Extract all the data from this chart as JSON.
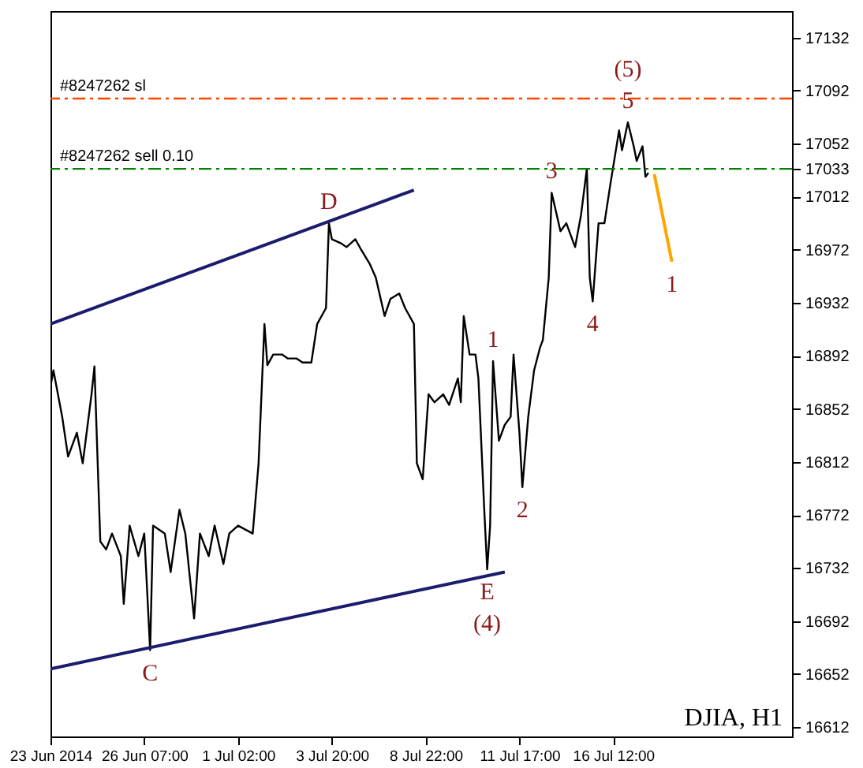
{
  "chart_data": {
    "type": "line",
    "categories": [
      "23 Jun 2014",
      null,
      null,
      null,
      null,
      null,
      null,
      null,
      null,
      null,
      null,
      null,
      null,
      null,
      null,
      null,
      null,
      null,
      null,
      null,
      null,
      null,
      null,
      null,
      null,
      null,
      null,
      null,
      null,
      null,
      null,
      null,
      "26 Jun 07:00",
      null,
      null,
      null,
      null,
      null,
      null,
      null,
      null,
      null,
      null,
      null,
      null,
      null,
      null,
      null,
      null,
      null,
      null,
      null,
      null,
      null,
      null,
      null,
      null,
      null,
      null,
      null,
      null,
      null,
      null,
      null,
      "1 Jul 02:00",
      null,
      null,
      null,
      null,
      null,
      null,
      null,
      null,
      null,
      null,
      null,
      null,
      null,
      null,
      null,
      null,
      null,
      null,
      null,
      null,
      null,
      null,
      null,
      null,
      null,
      null,
      null,
      null,
      null,
      null,
      null,
      "3 Jul 20:00",
      null,
      null,
      null,
      null,
      null,
      null,
      null,
      null,
      null,
      null,
      null,
      null,
      null,
      null,
      null,
      null,
      null,
      null,
      null,
      null,
      null,
      null,
      null,
      null,
      null,
      null,
      null,
      null,
      null,
      null,
      null,
      "8 Jul 22:00",
      null,
      null,
      null,
      null,
      null,
      null,
      null,
      null,
      null,
      null,
      null,
      null,
      null,
      null,
      null,
      null,
      null,
      null,
      null,
      null,
      null,
      null,
      null,
      null,
      null,
      null,
      null,
      null,
      null,
      null,
      null,
      "11 Jul 17:00",
      null,
      null,
      null,
      null,
      null,
      null,
      null,
      null,
      null,
      null,
      null,
      null,
      null,
      null,
      null,
      null,
      null,
      null,
      null,
      null,
      null,
      null,
      null,
      null,
      null,
      null,
      null,
      null,
      null,
      null,
      null,
      "16 Jul 12:00",
      null,
      null,
      null,
      null,
      null,
      null,
      null,
      null,
      null,
      null,
      null,
      null,
      null,
      null,
      null,
      null,
      null,
      null,
      null,
      null,
      null,
      null,
      null,
      null,
      null,
      null,
      null,
      null,
      null,
      null,
      null,
      null,
      null,
      null,
      null,
      null,
      null,
      null,
      null,
      null,
      null,
      null,
      null,
      null,
      null,
      null,
      null,
      null,
      null,
      null,
      null,
      null,
      null,
      null,
      null,
      null,
      null,
      null,
      null,
      null,
      null
    ],
    "ylim": [
      16605,
      17152
    ],
    "yticks": [
      16612,
      16652,
      16692,
      16732,
      16772,
      16812,
      16852,
      16892,
      16932,
      16972,
      17012,
      17033,
      17052,
      17092,
      17132
    ],
    "grid": false,
    "series": [
      {
        "color": "#000000",
        "values": [
          16869,
          16881,
          null,
          null,
          16846,
          null,
          16816,
          null,
          null,
          16834,
          null,
          16811,
          null,
          null,
          16863,
          16884,
          null,
          16752,
          null,
          16746,
          null,
          16758,
          null,
          null,
          16741,
          16705,
          null,
          16764,
          null,
          null,
          16741,
          null,
          16758,
          null,
          16670,
          16764,
          null,
          null,
          null,
          16758,
          null,
          16729,
          null,
          null,
          16776,
          null,
          16758,
          null,
          null,
          16694,
          null,
          16758,
          null,
          null,
          16741,
          null,
          16764,
          null,
          null,
          16735,
          null,
          16758,
          null,
          null,
          16764,
          null,
          null,
          null,
          null,
          16758,
          null,
          16811,
          null,
          16916,
          16885,
          null,
          16893,
          null,
          null,
          16893,
          null,
          16890,
          null,
          null,
          16890,
          null,
          16887,
          null,
          null,
          16887,
          null,
          16916,
          null,
          null,
          16928,
          16992,
          16980,
          null,
          null,
          16977,
          null,
          16974,
          null,
          null,
          16980,
          null,
          16972,
          null,
          null,
          16961,
          null,
          16951,
          null,
          null,
          16922,
          null,
          16935,
          null,
          null,
          16939,
          null,
          16928,
          null,
          null,
          16916,
          16811,
          null,
          16799,
          null,
          16863,
          null,
          16857,
          null,
          null,
          16863,
          null,
          16855,
          null,
          null,
          16875,
          16857,
          16922,
          null,
          16893,
          null,
          16893,
          16875,
          null,
          16776,
          16731,
          16764,
          16888,
          null,
          16828,
          null,
          16840,
          null,
          16846,
          16893,
          null,
          16834,
          16793,
          null,
          16846,
          null,
          16881,
          null,
          16898,
          16904,
          null,
          16951,
          17015,
          null,
          null,
          16986,
          null,
          16992,
          null,
          null,
          16974,
          null,
          16998,
          null,
          17033,
          16951,
          16933,
          null,
          16992,
          null,
          16992,
          null,
          17021,
          null,
          null,
          17062,
          17047,
          null,
          17068,
          null,
          17050,
          17039,
          null,
          17050,
          17027,
          17030,
          null,
          null,
          null,
          null,
          null,
          null,
          null,
          null,
          null,
          null,
          null,
          null,
          null,
          null,
          null,
          null,
          null,
          null,
          null,
          null,
          null,
          null,
          null,
          null,
          null,
          null,
          null,
          null,
          null,
          null,
          null,
          null,
          null,
          null,
          null,
          null,
          null,
          null,
          null,
          null,
          null,
          null,
          null,
          null,
          null,
          null,
          null,
          null,
          null
        ]
      },
      {
        "color": "#1c1c6e",
        "values": [
          16916,
          null,
          null,
          null,
          null,
          null,
          null,
          null,
          null,
          null,
          null,
          null,
          null,
          null,
          null,
          null,
          null,
          null,
          null,
          null,
          null,
          null,
          null,
          null,
          null,
          null,
          null,
          null,
          null,
          null,
          null,
          null,
          null,
          null,
          null,
          null,
          null,
          null,
          null,
          null,
          null,
          null,
          null,
          null,
          null,
          null,
          null,
          null,
          null,
          null,
          null,
          null,
          null,
          null,
          null,
          null,
          null,
          null,
          null,
          null,
          null,
          null,
          null,
          null,
          null,
          null,
          null,
          null,
          null,
          null,
          null,
          null,
          null,
          null,
          null,
          null,
          null,
          null,
          null,
          null,
          null,
          null,
          null,
          null,
          null,
          null,
          null,
          null,
          null,
          null,
          null,
          null,
          null,
          null,
          null,
          null,
          null,
          null,
          null,
          null,
          null,
          null,
          null,
          null,
          null,
          null,
          null,
          null,
          null,
          null,
          null,
          null,
          null,
          null,
          null,
          null,
          null,
          null,
          null,
          null,
          null,
          null,
          null,
          null,
          17017,
          null,
          null,
          null,
          null,
          null,
          null,
          null,
          null,
          null,
          null,
          null,
          null,
          null,
          null,
          null,
          null,
          null,
          null,
          null,
          null,
          null,
          null,
          null,
          null,
          null,
          null,
          null,
          null,
          null,
          null,
          null,
          null,
          null,
          null,
          null,
          null,
          null,
          null,
          null,
          null,
          null,
          null,
          null,
          null,
          null,
          null,
          null,
          null,
          null,
          null,
          null,
          null,
          null,
          null,
          null,
          null,
          null,
          null,
          null,
          null,
          null,
          null,
          null,
          null,
          null,
          null,
          null,
          null,
          null,
          null,
          null,
          null,
          null,
          null,
          null,
          null,
          null,
          null,
          null,
          null,
          null,
          null,
          null,
          null,
          null,
          null,
          null,
          null,
          null,
          null,
          null,
          null,
          null,
          null,
          null,
          null,
          null,
          null,
          null,
          null,
          null,
          null,
          null,
          null,
          null,
          null,
          null,
          null,
          null,
          null,
          null,
          null,
          null,
          null,
          null,
          null,
          null,
          null,
          null,
          null,
          null,
          null,
          null,
          null,
          null,
          null,
          null,
          null,
          null
        ]
      },
      {
        "color": "#1c1c6e",
        "values": [
          16656,
          null,
          null,
          null,
          null,
          null,
          null,
          null,
          null,
          null,
          null,
          null,
          null,
          null,
          null,
          null,
          null,
          null,
          null,
          null,
          null,
          null,
          null,
          null,
          null,
          null,
          null,
          null,
          null,
          null,
          null,
          null,
          null,
          null,
          null,
          null,
          null,
          null,
          null,
          null,
          null,
          null,
          null,
          null,
          null,
          null,
          null,
          null,
          null,
          null,
          null,
          null,
          null,
          null,
          null,
          null,
          null,
          null,
          null,
          null,
          null,
          null,
          null,
          null,
          null,
          null,
          null,
          null,
          null,
          null,
          null,
          null,
          null,
          null,
          null,
          null,
          null,
          null,
          null,
          null,
          null,
          null,
          null,
          null,
          null,
          null,
          null,
          null,
          null,
          null,
          null,
          null,
          null,
          null,
          null,
          null,
          null,
          null,
          null,
          null,
          null,
          null,
          null,
          null,
          null,
          null,
          null,
          null,
          null,
          null,
          null,
          null,
          null,
          null,
          null,
          null,
          null,
          null,
          null,
          null,
          null,
          null,
          null,
          null,
          null,
          null,
          null,
          null,
          null,
          null,
          null,
          null,
          null,
          null,
          null,
          null,
          null,
          null,
          null,
          null,
          null,
          null,
          null,
          null,
          null,
          null,
          null,
          null,
          null,
          null,
          null,
          null,
          null,
          null,
          null,
          16729,
          null,
          null,
          null,
          null,
          null,
          null,
          null,
          null,
          null,
          null,
          null,
          null,
          null,
          null,
          null,
          null,
          null,
          null,
          null,
          null,
          null,
          null,
          null,
          null,
          null,
          null,
          null,
          null,
          null,
          null,
          null,
          null,
          null,
          null,
          null,
          null,
          null,
          null,
          null,
          null,
          null,
          null,
          null,
          null,
          null,
          null,
          null,
          null,
          null,
          null,
          null,
          null,
          null,
          null,
          null,
          null,
          null,
          null,
          null,
          null,
          null,
          null,
          null,
          null,
          null,
          null,
          null,
          null,
          null,
          null,
          null,
          null,
          null,
          null,
          null,
          null,
          null,
          null,
          null,
          null,
          null,
          null,
          null,
          null,
          null,
          null,
          null,
          null,
          null,
          null,
          null,
          null,
          null,
          null,
          null,
          null,
          null,
          null
        ]
      },
      {
        "color": "#ffa500",
        "values": [
          null,
          null,
          null,
          null,
          null,
          null,
          null,
          null,
          null,
          null,
          null,
          null,
          null,
          null,
          null,
          null,
          null,
          null,
          null,
          null,
          null,
          null,
          null,
          null,
          null,
          null,
          null,
          null,
          null,
          null,
          null,
          null,
          null,
          null,
          null,
          null,
          null,
          null,
          null,
          null,
          null,
          null,
          null,
          null,
          null,
          null,
          null,
          null,
          null,
          null,
          null,
          null,
          null,
          null,
          null,
          null,
          null,
          null,
          null,
          null,
          null,
          null,
          null,
          null,
          null,
          null,
          null,
          null,
          null,
          null,
          null,
          null,
          null,
          null,
          null,
          null,
          null,
          null,
          null,
          null,
          null,
          null,
          null,
          null,
          null,
          null,
          null,
          null,
          null,
          null,
          null,
          null,
          null,
          null,
          null,
          null,
          null,
          null,
          null,
          null,
          null,
          null,
          null,
          null,
          null,
          null,
          null,
          null,
          null,
          null,
          null,
          null,
          null,
          null,
          null,
          null,
          null,
          null,
          null,
          null,
          null,
          null,
          null,
          null,
          null,
          null,
          null,
          null,
          null,
          null,
          null,
          null,
          null,
          null,
          null,
          null,
          null,
          null,
          null,
          null,
          null,
          null,
          null,
          null,
          null,
          null,
          null,
          null,
          null,
          null,
          null,
          null,
          null,
          null,
          null,
          null,
          null,
          null,
          null,
          null,
          null,
          null,
          null,
          null,
          null,
          null,
          null,
          null,
          null,
          null,
          null,
          null,
          null,
          null,
          null,
          null,
          null,
          null,
          null,
          null,
          null,
          null,
          null,
          null,
          null,
          null,
          null,
          null,
          null,
          null,
          null,
          null,
          null,
          null,
          null,
          null,
          null,
          null,
          null,
          null,
          null,
          null,
          null,
          null,
          null,
          null,
          17029,
          null,
          null,
          null,
          null,
          null,
          16963,
          null,
          null,
          null,
          null,
          null,
          null,
          null,
          null,
          null,
          null,
          null,
          null,
          null,
          null,
          null,
          null,
          null,
          null,
          null,
          null,
          null,
          null,
          null,
          null,
          null,
          null,
          null,
          null,
          null,
          null,
          null,
          null,
          null,
          null,
          null,
          null,
          null,
          null,
          null,
          null,
          null
        ]
      }
    ],
    "ref_lines": [
      {
        "axis": "y",
        "value": 17086,
        "label": "#8247262 sl",
        "color": "#ff4500",
        "line_style": "dashed"
      },
      {
        "axis": "y",
        "value": 17033,
        "label": "#8247262 sell 0.10",
        "color": "#008000",
        "line_style": "dashed"
      }
    ],
    "annotations": [
      {
        "text": "D",
        "y": 16992
      },
      {
        "text": "C",
        "y": 16670
      },
      {
        "text": "E",
        "y": 16731
      },
      {
        "text": "(4)",
        "y": 16731
      },
      {
        "text": "5",
        "y": 17068
      },
      {
        "text": "(5)",
        "y": 17068
      },
      {
        "text": "1",
        "y": 16888
      },
      {
        "text": "2",
        "y": 16793
      },
      {
        "text": "3",
        "y": 17015
      },
      {
        "text": "4",
        "y": 16933
      },
      {
        "text": "1",
        "y": 16963
      },
      "DJIA, H1"
    ]
  }
}
